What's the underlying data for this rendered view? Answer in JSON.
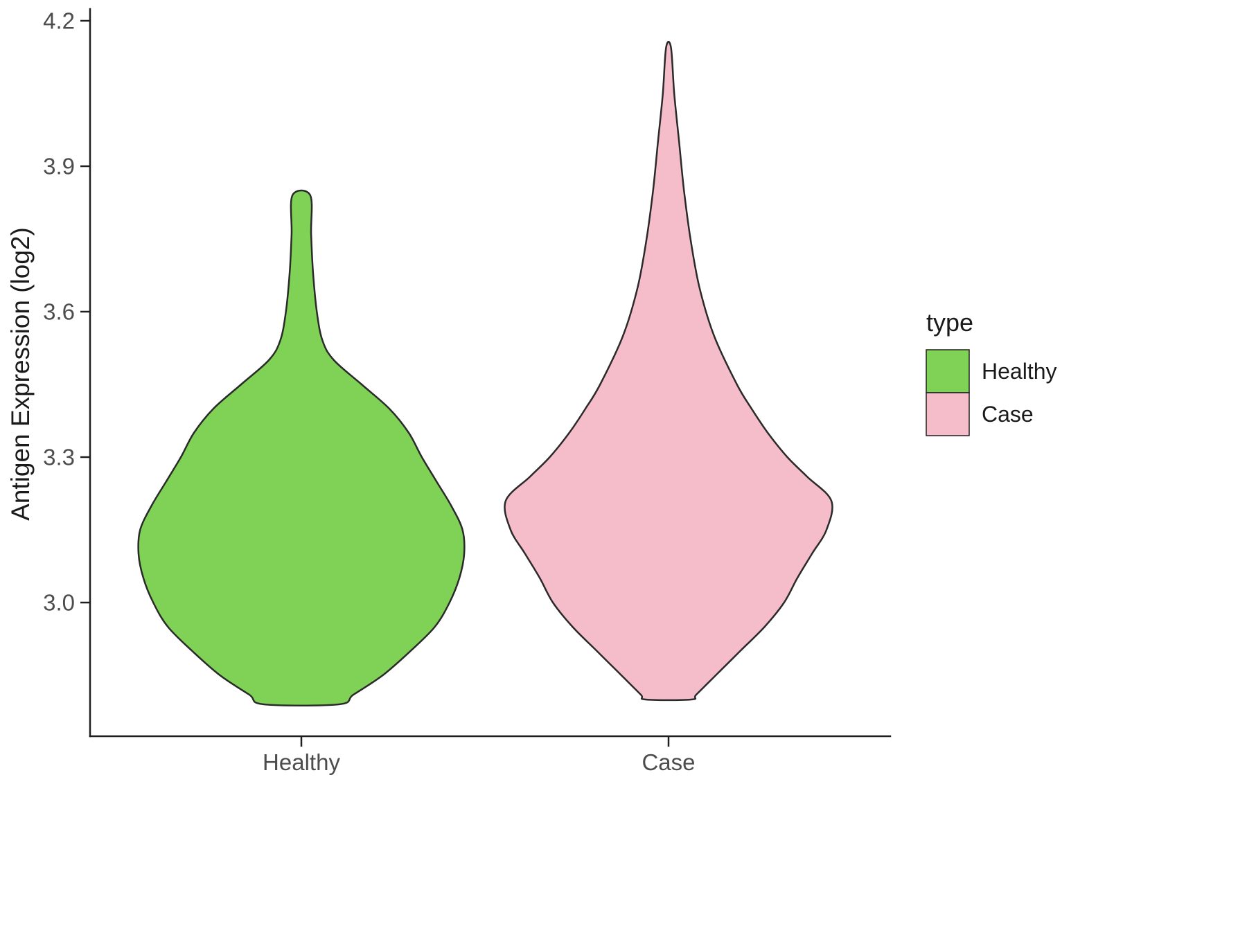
{
  "figure": {
    "background": "#FFFFFF"
  },
  "y_axis": {
    "label": "Antigen Expression (log2)",
    "tick_labels": [
      "4.2",
      "3.9",
      "3.6",
      "3.3",
      "3.0"
    ]
  },
  "x_axis": {
    "tick_labels": [
      "Healthy",
      "Case"
    ]
  },
  "legend": {
    "title": "type",
    "items": [
      {
        "label": "Healthy",
        "color": "#7FD256"
      },
      {
        "label": "Case",
        "color": "#F5BCCA"
      }
    ]
  },
  "chart_data": {
    "type": "violin",
    "title": "",
    "xlabel": "",
    "ylabel": "Antigen Expression (log2)",
    "ylim": [
      2.7,
      4.2
    ],
    "yticks": [
      3.0,
      3.3,
      3.6,
      3.9,
      4.2
    ],
    "categories": [
      "Healthy",
      "Case"
    ],
    "legend_title": "type",
    "legend_position": "right",
    "grid": false,
    "outline_color": "#2A2A2A",
    "series": [
      {
        "name": "Healthy",
        "fill": "#7FD256",
        "summary": {
          "min": 2.79,
          "max": 3.84,
          "widest_at": 3.15
        },
        "profile": [
          {
            "v": 3.84,
            "w": 0.055
          },
          {
            "v": 3.76,
            "w": 0.06
          },
          {
            "v": 3.68,
            "w": 0.072
          },
          {
            "v": 3.6,
            "w": 0.095
          },
          {
            "v": 3.54,
            "w": 0.13
          },
          {
            "v": 3.5,
            "w": 0.2
          },
          {
            "v": 3.45,
            "w": 0.37
          },
          {
            "v": 3.4,
            "w": 0.54
          },
          {
            "v": 3.35,
            "w": 0.66
          },
          {
            "v": 3.3,
            "w": 0.74
          },
          {
            "v": 3.25,
            "w": 0.83
          },
          {
            "v": 3.2,
            "w": 0.92
          },
          {
            "v": 3.15,
            "w": 0.99
          },
          {
            "v": 3.1,
            "w": 1.0
          },
          {
            "v": 3.05,
            "w": 0.97
          },
          {
            "v": 3.0,
            "w": 0.91
          },
          {
            "v": 2.95,
            "w": 0.82
          },
          {
            "v": 2.9,
            "w": 0.67
          },
          {
            "v": 2.85,
            "w": 0.5
          },
          {
            "v": 2.81,
            "w": 0.32
          },
          {
            "v": 2.79,
            "w": 0.23
          }
        ]
      },
      {
        "name": "Case",
        "fill": "#F5BCCA",
        "summary": {
          "min": 2.8,
          "max": 4.15,
          "widest_at": 3.21
        },
        "profile": [
          {
            "v": 4.145,
            "w": 0.015
          },
          {
            "v": 4.05,
            "w": 0.035
          },
          {
            "v": 3.95,
            "w": 0.065
          },
          {
            "v": 3.85,
            "w": 0.095
          },
          {
            "v": 3.75,
            "w": 0.135
          },
          {
            "v": 3.65,
            "w": 0.19
          },
          {
            "v": 3.55,
            "w": 0.28
          },
          {
            "v": 3.45,
            "w": 0.42
          },
          {
            "v": 3.4,
            "w": 0.51
          },
          {
            "v": 3.35,
            "w": 0.61
          },
          {
            "v": 3.3,
            "w": 0.73
          },
          {
            "v": 3.26,
            "w": 0.85
          },
          {
            "v": 3.21,
            "w": 1.0
          },
          {
            "v": 3.15,
            "w": 0.97
          },
          {
            "v": 3.1,
            "w": 0.88
          },
          {
            "v": 3.05,
            "w": 0.79
          },
          {
            "v": 3.0,
            "w": 0.71
          },
          {
            "v": 2.95,
            "w": 0.59
          },
          {
            "v": 2.9,
            "w": 0.44
          },
          {
            "v": 2.85,
            "w": 0.29
          },
          {
            "v": 2.81,
            "w": 0.17
          },
          {
            "v": 2.8,
            "w": 0.14
          }
        ]
      }
    ]
  }
}
